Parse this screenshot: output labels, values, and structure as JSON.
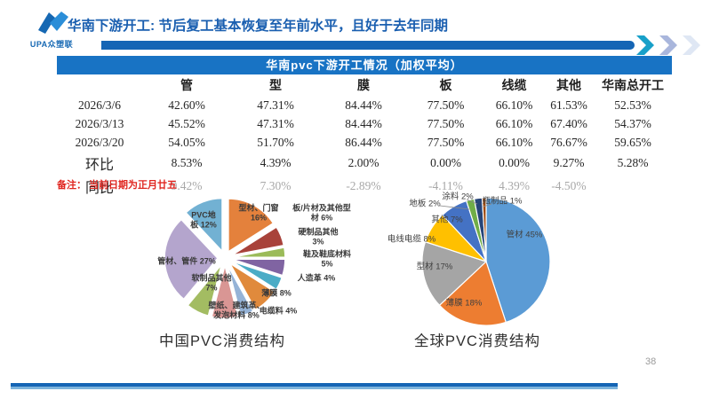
{
  "header": {
    "logo_text": "UPA众塑联",
    "title": "华南下游开工: 节后复工基本恢复至年前水平，且好于去年同期"
  },
  "table": {
    "caption": "华南pvc下游开工情况（加权平均）",
    "columns": [
      "",
      "管",
      "型",
      "膜",
      "板",
      "线缆",
      "其他",
      "华南总开工"
    ],
    "rows": [
      {
        "label": "2026/3/6",
        "style": "date",
        "values": [
          "42.60%",
          "47.31%",
          "84.44%",
          "77.50%",
          "66.10%",
          "61.53%",
          "52.53%"
        ]
      },
      {
        "label": "2026/3/13",
        "style": "date",
        "values": [
          "45.52%",
          "47.31%",
          "84.44%",
          "77.50%",
          "66.10%",
          "67.40%",
          "54.37%"
        ]
      },
      {
        "label": "2026/3/20",
        "style": "date",
        "values": [
          "54.05%",
          "51.70%",
          "86.44%",
          "77.50%",
          "66.10%",
          "76.67%",
          "59.65%"
        ]
      },
      {
        "label": "环比",
        "style": "delta",
        "values": [
          "8.53%",
          "4.39%",
          "2.00%",
          "0.00%",
          "0.00%",
          "9.27%",
          "5.28%"
        ]
      },
      {
        "label": "同比",
        "style": "delta muted",
        "values": [
          "9.42%",
          "7.30%",
          "-2.89%",
          "-4.11%",
          "4.39%",
          "-4.50%",
          ""
        ]
      }
    ]
  },
  "note": "备注： 当前日期为正月廿五",
  "page_number": "38",
  "colors": {
    "accent_blue": "#1565b5",
    "table_header_blue": "#1873c4",
    "note_red": "#e02620",
    "muted_gray": "#a8a8a8"
  },
  "chart_data": [
    {
      "type": "pie",
      "title": "中国PVC消费结构",
      "exploded": true,
      "legend_position": "on-chart-labels",
      "labels": [
        "型材、门窗",
        "板/片材及其他型材",
        "硬制品其他",
        "鞋及鞋底材料",
        "人造革",
        "薄膜",
        "电缆料",
        "壁纸、建筑革、发泡材料",
        "软制品其他",
        "管材、管件",
        "PVC地板"
      ],
      "values": [
        16,
        6,
        3,
        5,
        4,
        8,
        4,
        8,
        7,
        27,
        12
      ],
      "colors": [
        "#E4813C",
        "#A8423A",
        "#9BBB59",
        "#8064A2",
        "#4BACC6",
        "#E08A3C",
        "#95B3D7",
        "#D99694",
        "#A3BC62",
        "#B4A5CD",
        "#72B1D3"
      ]
    },
    {
      "type": "pie",
      "title": "全球PVC消费结构",
      "exploded": false,
      "legend_position": "on-chart-labels",
      "labels": [
        "管材",
        "薄膜",
        "型材",
        "电线电缆",
        "其他",
        "地板",
        "涂料",
        "瓶制品"
      ],
      "values": [
        45,
        18,
        17,
        8,
        7,
        2,
        2,
        1
      ],
      "colors": [
        "#5B9BD5",
        "#ED7D31",
        "#A5A5A5",
        "#FFC000",
        "#4472C4",
        "#70AD47",
        "#264478",
        "#9E480E"
      ]
    }
  ]
}
